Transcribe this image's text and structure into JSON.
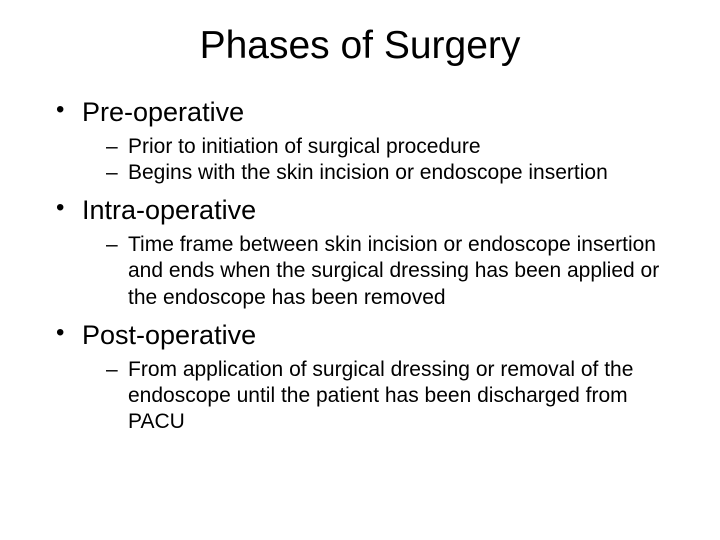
{
  "title": "Phases of Surgery",
  "bullets": [
    {
      "label": "Pre-operative",
      "sub": [
        "Prior to initiation of surgical procedure",
        "Begins with the skin incision or endoscope insertion"
      ]
    },
    {
      "label": "Intra-operative",
      "sub": [
        "Time frame between skin incision or endoscope insertion and ends when the surgical dressing has been applied or the endoscope has been removed"
      ]
    },
    {
      "label": "Post-operative",
      "sub": [
        "From application of surgical dressing or removal of the endoscope until the patient has been discharged from PACU"
      ]
    }
  ]
}
